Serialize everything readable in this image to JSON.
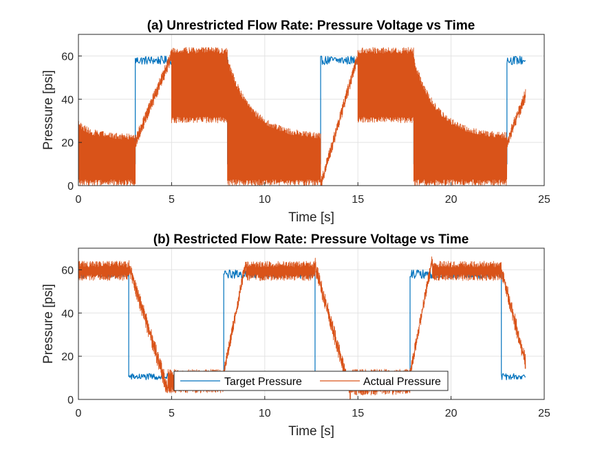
{
  "colors": {
    "target": "#0072BD",
    "actual": "#D95319",
    "grid": "#e3e3e3",
    "axis": "#262626"
  },
  "chart_data": [
    {
      "type": "line",
      "title": "(a) Unrestricted Flow Rate: Pressure Voltage vs Time",
      "xlabel": "Time [s]",
      "ylabel": "Pressure [psi]",
      "xlim": [
        0,
        25
      ],
      "ylim": [
        0,
        70
      ],
      "xticks": [
        "0",
        "5",
        "10",
        "15",
        "20",
        "25"
      ],
      "yticks": [
        "0",
        "20",
        "40",
        "60"
      ],
      "grid": true,
      "x_end": 24,
      "series": [
        {
          "name": "Target Pressure",
          "segments": [
            {
              "x0": 0,
              "x1": 3.05,
              "low": 10,
              "high": 10
            },
            {
              "x0": 3.05,
              "x1": 5.0,
              "low": 56,
              "high": 60
            },
            {
              "x0": 5.0,
              "x1": 8.0,
              "low": 56,
              "high": 60
            },
            {
              "x0": 8.0,
              "x1": 13.0,
              "low": 10,
              "high": 10
            },
            {
              "x0": 13.0,
              "x1": 15.0,
              "low": 56,
              "high": 60
            },
            {
              "x0": 15.0,
              "x1": 18.0,
              "low": 56,
              "high": 60
            },
            {
              "x0": 18.0,
              "x1": 23.0,
              "low": 10,
              "high": 10
            },
            {
              "x0": 23.0,
              "x1": 24.0,
              "low": 56,
              "high": 60
            }
          ]
        },
        {
          "name": "Actual Pressure",
          "segments": [
            {
              "x0": 0,
              "x1": 3.05,
              "low": 0,
              "high": 24,
              "start_high": 30
            },
            {
              "x0": 3.05,
              "x1": 5.0,
              "low": 20,
              "high": 60,
              "ramp": true
            },
            {
              "x0": 5.0,
              "x1": 8.0,
              "low": 29,
              "high": 64
            },
            {
              "x0": 8.0,
              "x1": 13.0,
              "low": 0,
              "high": 24,
              "start_high": 60
            },
            {
              "x0": 13.0,
              "x1": 15.0,
              "low": 0,
              "high": 60,
              "ramp": true
            },
            {
              "x0": 15.0,
              "x1": 18.0,
              "low": 29,
              "high": 64
            },
            {
              "x0": 18.0,
              "x1": 23.0,
              "low": 0,
              "high": 24,
              "start_high": 60
            },
            {
              "x0": 23.0,
              "x1": 24.0,
              "low": 20,
              "high": 42,
              "ramp": true
            }
          ]
        }
      ]
    },
    {
      "type": "line",
      "title": "(b) Restricted Flow Rate: Pressure Voltage vs Time",
      "xlabel": "Time [s]",
      "ylabel": "Pressure [psi]",
      "xlim": [
        0,
        25
      ],
      "ylim": [
        0,
        70
      ],
      "xticks": [
        "0",
        "5",
        "10",
        "15",
        "20",
        "25"
      ],
      "yticks": [
        "0",
        "20",
        "40",
        "60"
      ],
      "grid": true,
      "x_end": 24,
      "legend": {
        "placement": "bottom-center",
        "entries": [
          "Target Pressure",
          "Actual Pressure"
        ]
      },
      "series": [
        {
          "name": "Target Pressure",
          "segments": [
            {
              "x0": 0,
              "x1": 2.7,
              "low": 56,
              "high": 60
            },
            {
              "x0": 2.7,
              "x1": 7.8,
              "low": 9,
              "high": 12
            },
            {
              "x0": 7.8,
              "x1": 12.7,
              "low": 56,
              "high": 60
            },
            {
              "x0": 12.7,
              "x1": 17.8,
              "low": 9,
              "high": 12
            },
            {
              "x0": 17.8,
              "x1": 22.7,
              "low": 56,
              "high": 60
            },
            {
              "x0": 22.7,
              "x1": 24.0,
              "low": 9,
              "high": 12
            }
          ]
        },
        {
          "name": "Actual Pressure",
          "segments": [
            {
              "x0": 0,
              "x1": 2.7,
              "low": 55,
              "high": 64
            },
            {
              "x0": 2.7,
              "x1": 4.8,
              "low": 4,
              "high": 62,
              "ramp_down": true
            },
            {
              "x0": 4.8,
              "x1": 7.8,
              "low": 3,
              "high": 14
            },
            {
              "x0": 7.8,
              "x1": 9.0,
              "low": 12,
              "high": 64,
              "ramp": true
            },
            {
              "x0": 9.0,
              "x1": 12.7,
              "low": 55,
              "high": 64
            },
            {
              "x0": 12.7,
              "x1": 14.6,
              "low": 3,
              "high": 62,
              "ramp_down": true
            },
            {
              "x0": 14.6,
              "x1": 17.8,
              "low": 2,
              "high": 14
            },
            {
              "x0": 17.8,
              "x1": 19.0,
              "low": 12,
              "high": 65,
              "ramp": true
            },
            {
              "x0": 19.0,
              "x1": 22.7,
              "low": 55,
              "high": 64
            },
            {
              "x0": 22.7,
              "x1": 24.0,
              "low": 17,
              "high": 60,
              "ramp_down": true
            }
          ]
        }
      ]
    }
  ]
}
